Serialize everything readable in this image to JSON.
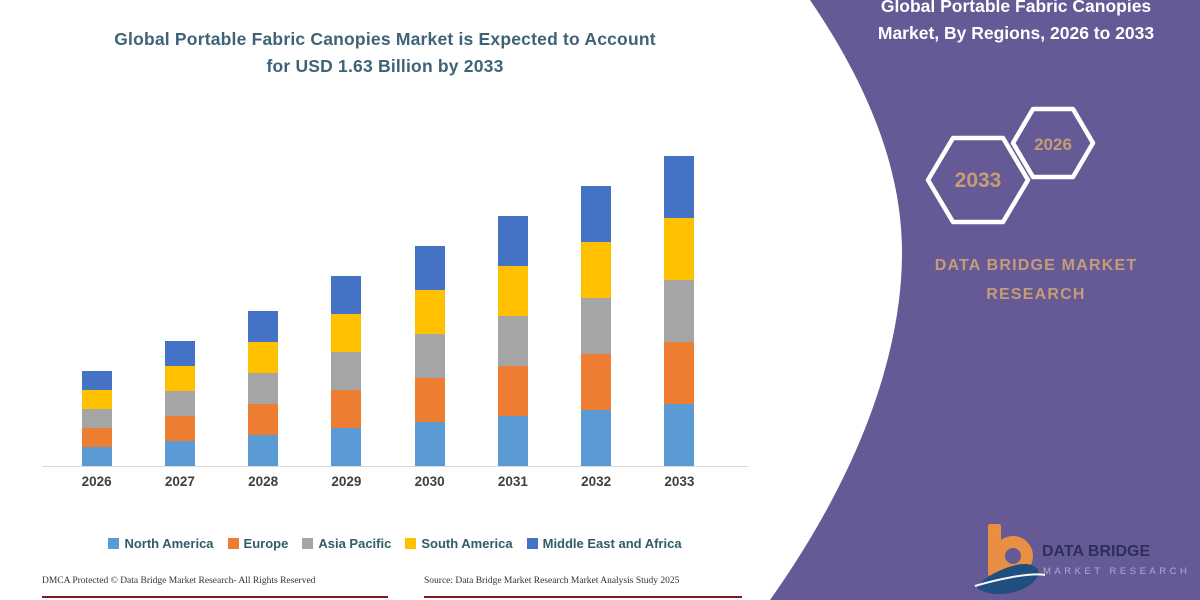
{
  "left_panel": {
    "title_line1": "Global Portable Fabric Canopies Market is Expected to Account",
    "title_line2": "for USD 1.63 Billion by 2033"
  },
  "chart_data": {
    "type": "bar",
    "stacked": true,
    "title": "Global Portable Fabric Canopies Market is Expected to Account for USD 1.63 Billion by 2033",
    "unit": "USD Billion",
    "categories": [
      "2026",
      "2027",
      "2028",
      "2029",
      "2030",
      "2031",
      "2032",
      "2033"
    ],
    "series": [
      {
        "name": "North America",
        "color": "#5B9BD5",
        "values": [
          0.098,
          0.13,
          0.164,
          0.196,
          0.228,
          0.262,
          0.294,
          0.326
        ]
      },
      {
        "name": "Europe",
        "color": "#ED7D31",
        "values": [
          0.098,
          0.13,
          0.164,
          0.196,
          0.228,
          0.262,
          0.294,
          0.326
        ]
      },
      {
        "name": "Asia Pacific",
        "color": "#A5A5A5",
        "values": [
          0.098,
          0.13,
          0.164,
          0.196,
          0.228,
          0.262,
          0.294,
          0.326
        ]
      },
      {
        "name": "South America",
        "color": "#FFC000",
        "values": [
          0.098,
          0.13,
          0.164,
          0.196,
          0.228,
          0.262,
          0.294,
          0.326
        ]
      },
      {
        "name": "Middle East and Africa",
        "color": "#4472C4",
        "values": [
          0.098,
          0.13,
          0.164,
          0.196,
          0.228,
          0.262,
          0.294,
          0.326
        ]
      }
    ],
    "totals": [
      0.49,
      0.65,
      0.82,
      0.98,
      1.14,
      1.31,
      1.47,
      1.63
    ],
    "ylim": [
      0,
      1.75
    ],
    "y_axis_visible": false,
    "gridlines": false,
    "legend_position": "bottom"
  },
  "right_panel": {
    "panel_color": "#665a96",
    "accent_text_color": "#c49d78",
    "title_line1": "Global Portable Fabric Canopies",
    "title_line2": "Market, By Regions, 2026 to 2033",
    "hexagon_large_label": "2033",
    "hexagon_small_label": "2026",
    "brand_line1": "DATA BRIDGE MARKET",
    "brand_line2": "RESEARCH"
  },
  "logo": {
    "name_line1": "DATA BRIDGE",
    "name_line2": "MARKET RESEARCH"
  },
  "footer": {
    "left_text": "DMCA Protected © Data Bridge Market Research-  All Rights Reserved",
    "right_text": "Source: Data Bridge Market Research  Market Analysis Study 2025",
    "underline_color": "#7d1b20"
  }
}
